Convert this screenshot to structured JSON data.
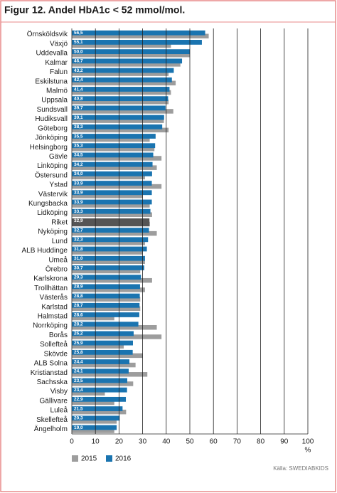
{
  "chart_data": {
    "type": "hbar",
    "title": "Figur 12. Andel HbA1c < 52 mmol/mol.",
    "x_unit_label": "%",
    "source": "Källa: SWEDIABKIDS",
    "categories": [
      "Örnsköldsvik",
      "Växjö",
      "Uddevalla",
      "Kalmar",
      "Falun",
      "Eskilstuna",
      "Malmö",
      "Uppsala",
      "Sundsvall",
      "Hudiksvall",
      "Göteborg",
      "Jönköping",
      "Helsingborg",
      "Gävle",
      "Linköping",
      "Östersund",
      "Ystad",
      "Västervik",
      "Kungsbacka",
      "Lidköping",
      "Riket",
      "Nyköping",
      "Lund",
      "ALB Huddinge",
      "Umeå",
      "Örebro",
      "Karlskrona",
      "Trollhättan",
      "Västerås",
      "Karlstad",
      "Halmstad",
      "Norrköping",
      "Borås",
      "Sollefteå",
      "Skövde",
      "ALB Solna",
      "Kristianstad",
      "Sachsska",
      "Visby",
      "Gällivare",
      "Luleå",
      "Skellefteå",
      "Ängelholm"
    ],
    "series": [
      {
        "name": "2015",
        "color": "#9d9d9d",
        "values": [
          58,
          42,
          50,
          46,
          41,
          44,
          42,
          41,
          43,
          39,
          41,
          33,
          35,
          38,
          36,
          31,
          38,
          30,
          33,
          34,
          33,
          36,
          31,
          30,
          31,
          29,
          34,
          31,
          29,
          29,
          18,
          36,
          38,
          22,
          30,
          27,
          32,
          26,
          14,
          18,
          23,
          19,
          18
        ]
      },
      {
        "name": "2016",
        "color": "#1a74b0",
        "values": [
          56.5,
          55.1,
          50.0,
          46.7,
          43.2,
          42.4,
          41.4,
          40.8,
          39.7,
          39.1,
          38.3,
          35.5,
          35.3,
          34.5,
          34.2,
          34.0,
          33.9,
          33.9,
          33.9,
          33.3,
          32.9,
          32.7,
          32.3,
          31.8,
          31.0,
          30.7,
          29.3,
          28.9,
          28.8,
          28.7,
          28.6,
          28.2,
          26.2,
          25.9,
          25.8,
          24.4,
          24.1,
          23.5,
          23.4,
          22.9,
          21.5,
          20.3,
          19.0
        ],
        "value_labels": [
          "56,5",
          "55,1",
          "50,0",
          "46,7",
          "43,2",
          "42,4",
          "41,4",
          "40,8",
          "39,7",
          "39,1",
          "38,3",
          "35,5",
          "35,3",
          "34,5",
          "34,2",
          "34,0",
          "33,9",
          "33,9",
          "33,9",
          "33,3",
          "32,9",
          "32,7",
          "32,3",
          "31,8",
          "31,0",
          "30,7",
          "29,3",
          "28,9",
          "28,8",
          "28,7",
          "28,6",
          "28,2",
          "26,2",
          "25,9",
          "25,8",
          "24,4",
          "24,1",
          "23,5",
          "23,4",
          "22,9",
          "21,5",
          "20,3",
          "19,0"
        ]
      }
    ],
    "highlight_index": 20,
    "highlight_color": "#555555",
    "xlim": [
      0,
      100
    ],
    "xticks": [
      0,
      10,
      20,
      30,
      40,
      50,
      60,
      70,
      80,
      90,
      100
    ],
    "grid": true
  }
}
